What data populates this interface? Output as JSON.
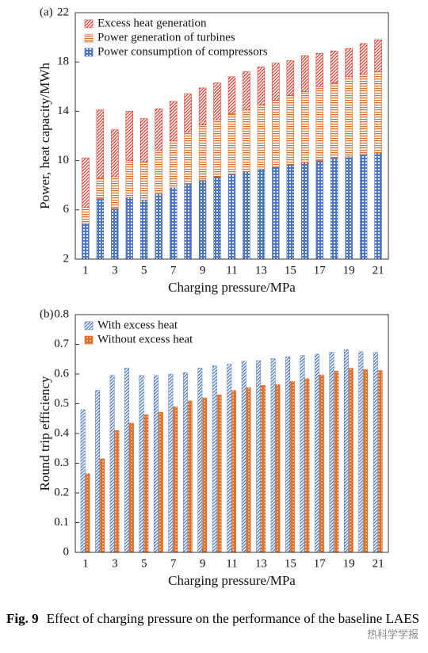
{
  "chart_data": [
    {
      "type": "bar",
      "stacked": true,
      "panel_label": "(a)",
      "ylabel": "Power, heat capacity/MWh",
      "xlabel": "Charging pressure/MPa",
      "x": [
        1,
        2,
        3,
        4,
        5,
        6,
        7,
        8,
        9,
        10,
        11,
        12,
        13,
        14,
        15,
        16,
        17,
        18,
        19,
        20,
        21
      ],
      "xlim": [
        0.3,
        21.7
      ],
      "xticks": [
        1,
        3,
        5,
        7,
        9,
        11,
        13,
        15,
        17,
        19,
        21
      ],
      "ylim": [
        2,
        22
      ],
      "yticks": [
        2,
        6,
        10,
        14,
        18,
        22
      ],
      "legend": "upper-left",
      "series": [
        {
          "name": "Power consumption of compressors",
          "color": "#4a76c4",
          "hatch": "grid",
          "values": [
            4.9,
            6.9,
            6.1,
            7.0,
            6.8,
            7.3,
            7.8,
            8.1,
            8.4,
            8.7,
            8.9,
            9.1,
            9.3,
            9.5,
            9.7,
            9.85,
            10.0,
            10.2,
            10.3,
            10.5,
            10.6
          ]
        },
        {
          "name": "Power generation of turbines",
          "color": "#e0702a",
          "hatch": "horizontal",
          "values": [
            1.3,
            1.7,
            2.6,
            3.0,
            3.1,
            3.5,
            3.8,
            4.2,
            4.5,
            4.6,
            4.9,
            5.0,
            5.2,
            5.4,
            5.6,
            5.75,
            6.0,
            6.1,
            6.5,
            6.5,
            6.6
          ]
        },
        {
          "name": "Excess heat generation",
          "color": "#e0382a",
          "hatch": "diagonal",
          "values": [
            4.0,
            5.5,
            3.8,
            4.0,
            3.5,
            3.4,
            3.2,
            3.1,
            3.0,
            3.0,
            3.0,
            3.1,
            3.1,
            3.0,
            2.8,
            2.9,
            2.7,
            2.6,
            2.3,
            2.5,
            2.6
          ]
        }
      ]
    },
    {
      "type": "bar",
      "stacked": false,
      "panel_label": "(b)",
      "ylabel": "Round trip efficiency",
      "xlabel": "Charging pressure/MPa",
      "x": [
        1,
        2,
        3,
        4,
        5,
        6,
        7,
        8,
        9,
        10,
        11,
        12,
        13,
        14,
        15,
        16,
        17,
        18,
        19,
        20,
        21
      ],
      "xlim": [
        0.3,
        21.7
      ],
      "xticks": [
        1,
        3,
        5,
        7,
        9,
        11,
        13,
        15,
        17,
        19,
        21
      ],
      "ylim": [
        0,
        0.8
      ],
      "yticks": [
        0,
        0.1,
        0.2,
        0.3,
        0.4,
        0.5,
        0.6,
        0.7,
        0.8
      ],
      "legend": "upper-left",
      "series": [
        {
          "name": "With excess heat",
          "color": "#4a76c4",
          "hatch": "diagonal",
          "values": [
            0.48,
            0.545,
            0.595,
            0.62,
            0.595,
            0.595,
            0.6,
            0.605,
            0.62,
            0.628,
            0.633,
            0.643,
            0.645,
            0.652,
            0.658,
            0.662,
            0.667,
            0.673,
            0.682,
            0.675,
            0.673
          ]
        },
        {
          "name": "Without excess heat",
          "color": "#e0702a",
          "hatch": "dots",
          "values": [
            0.265,
            0.315,
            0.41,
            0.435,
            0.463,
            0.472,
            0.49,
            0.51,
            0.52,
            0.53,
            0.545,
            0.555,
            0.562,
            0.565,
            0.575,
            0.585,
            0.597,
            0.61,
            0.62,
            0.615,
            0.612
          ]
        }
      ]
    }
  ],
  "caption": {
    "label": "Fig. 9",
    "text": "Effect of charging pressure on the performance of the baseline LAES"
  },
  "watermark": "热科学学报"
}
